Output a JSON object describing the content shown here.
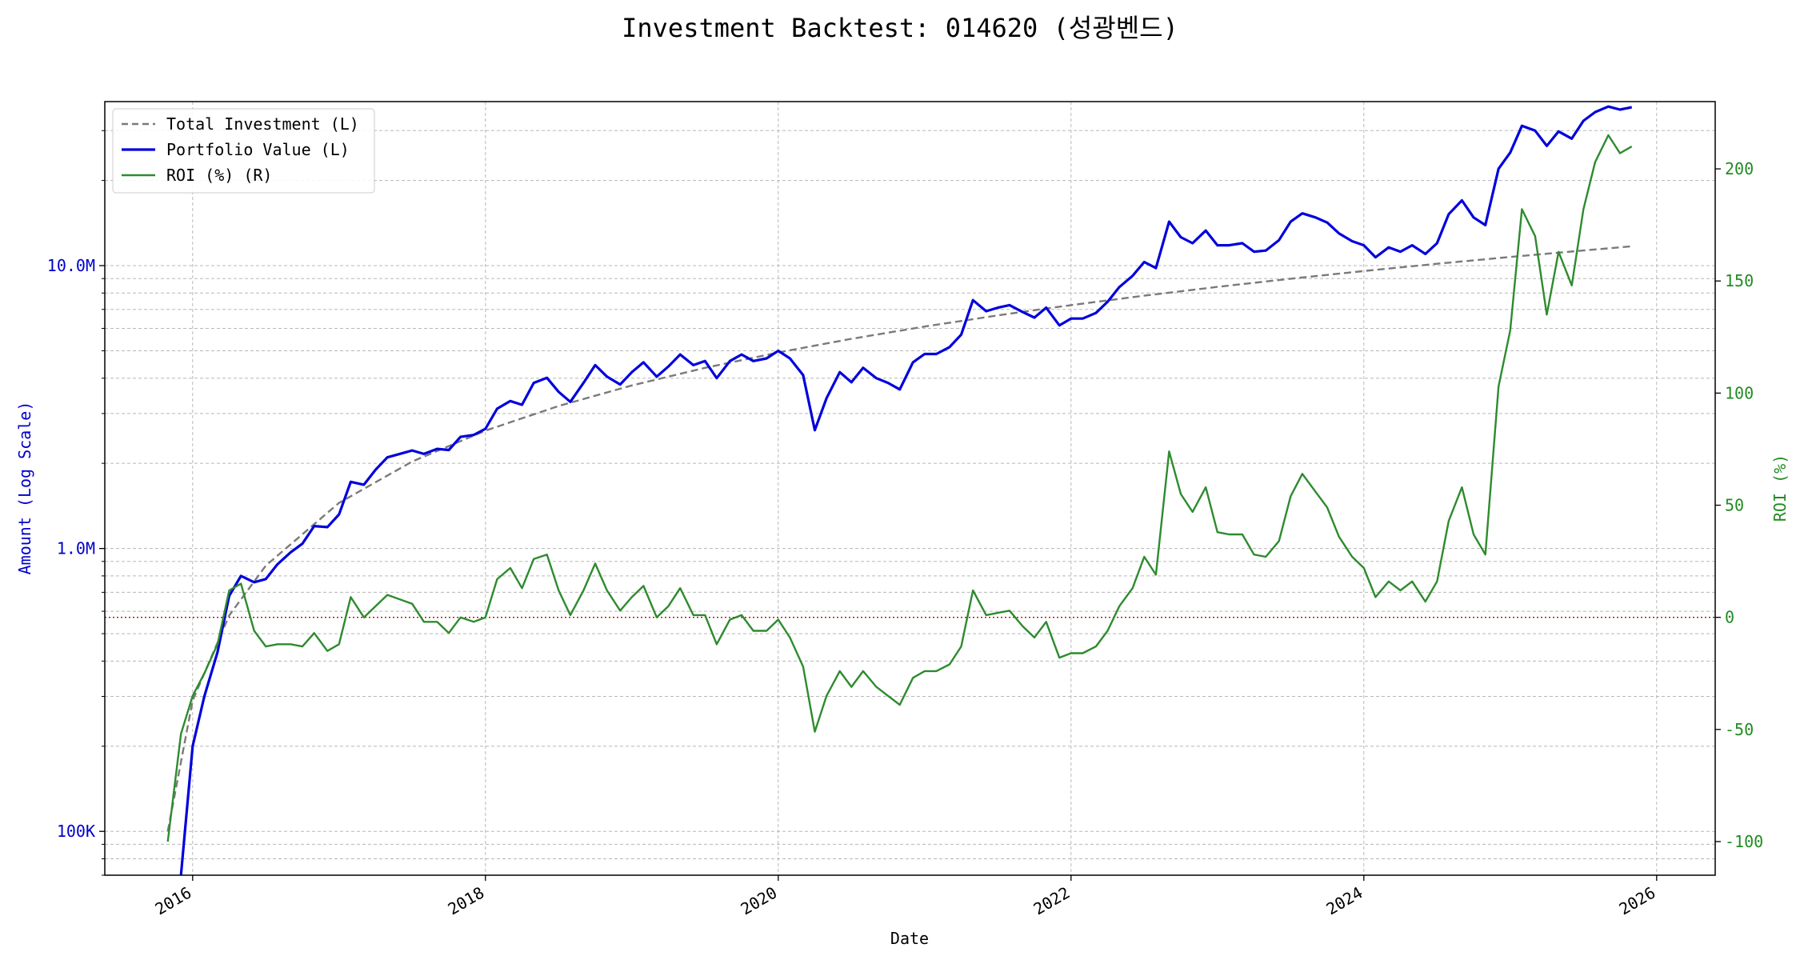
{
  "chart_data": {
    "type": "line",
    "title": "Investment Backtest: 014620 (성광벤드)",
    "xlabel": "Date",
    "ylabel_left": "Amount (Log Scale)",
    "ylabel_right": "ROI (%)",
    "y_left_scale": "log",
    "xlim": [
      2015.4,
      2026.4
    ],
    "ylim_left": [
      70000,
      38000000
    ],
    "ylim_right": [
      -115,
      230
    ],
    "x_ticks": [
      "2016",
      "2018",
      "2020",
      "2022",
      "2024",
      "2026"
    ],
    "y_left_ticks": [
      "100K",
      "1.0M",
      "10.0M"
    ],
    "y_right_ticks": [
      "-100",
      "-50",
      "0",
      "50",
      "100",
      "150",
      "200"
    ],
    "grid": true,
    "legend_position": "top-left",
    "reference_line": {
      "axis": "right",
      "value": 0,
      "color": "#cc0000",
      "style": "dotted"
    },
    "colors": {
      "left_axis": "#0000cc",
      "right_axis": "#228b22",
      "investment": "#7a7a7a",
      "portfolio": "#0000dd",
      "roi": "#2e8b2e"
    },
    "series": [
      {
        "name": "Total Investment (L)",
        "axis": "left",
        "style": "dashed",
        "color": "#7a7a7a",
        "x": [
          2015.83,
          2016.0,
          2016.25,
          2016.5,
          2017.0,
          2017.5,
          2018.0,
          2018.5,
          2019.0,
          2019.5,
          2020.0,
          2020.5,
          2021.0,
          2021.5,
          2022.0,
          2022.5,
          2023.0,
          2023.5,
          2024.0,
          2024.5,
          2025.0,
          2025.5,
          2025.83
        ],
        "y": [
          100000,
          290000,
          580000,
          870000,
          1450000,
          2030000,
          2610000,
          3190000,
          3770000,
          4350000,
          4930000,
          5510000,
          6090000,
          6670000,
          7250000,
          7830000,
          8410000,
          8990000,
          9570000,
          10150000,
          10730000,
          11310000,
          11700000
        ]
      },
      {
        "name": "Portfolio Value (L)",
        "axis": "left",
        "style": "solid",
        "color": "#0000dd",
        "x": [
          2015.92,
          2016.0,
          2016.08,
          2016.17,
          2016.25,
          2016.33,
          2016.42,
          2016.5,
          2016.58,
          2016.67,
          2016.75,
          2016.83,
          2016.92,
          2017.0,
          2017.08,
          2017.17,
          2017.25,
          2017.33,
          2017.5,
          2017.58,
          2017.67,
          2017.75,
          2017.83,
          2017.92,
          2018.0,
          2018.08,
          2018.17,
          2018.25,
          2018.33,
          2018.42,
          2018.5,
          2018.58,
          2018.67,
          2018.75,
          2018.83,
          2018.92,
          2019.0,
          2019.08,
          2019.17,
          2019.25,
          2019.33,
          2019.42,
          2019.5,
          2019.58,
          2019.67,
          2019.75,
          2019.83,
          2019.92,
          2020.0,
          2020.08,
          2020.17,
          2020.25,
          2020.33,
          2020.42,
          2020.5,
          2020.58,
          2020.67,
          2020.75,
          2020.83,
          2020.92,
          2021.0,
          2021.08,
          2021.17,
          2021.25,
          2021.33,
          2021.42,
          2021.5,
          2021.58,
          2021.67,
          2021.75,
          2021.83,
          2021.92,
          2022.0,
          2022.08,
          2022.17,
          2022.25,
          2022.33,
          2022.42,
          2022.5,
          2022.58,
          2022.67,
          2022.75,
          2022.83,
          2022.92,
          2023.0,
          2023.08,
          2023.17,
          2023.25,
          2023.33,
          2023.42,
          2023.5,
          2023.58,
          2023.67,
          2023.75,
          2023.83,
          2023.92,
          2024.0,
          2024.08,
          2024.17,
          2024.25,
          2024.33,
          2024.42,
          2024.5,
          2024.58,
          2024.67,
          2024.75,
          2024.83,
          2024.92,
          2025.0,
          2025.08,
          2025.17,
          2025.25,
          2025.33,
          2025.42,
          2025.5,
          2025.58,
          2025.67,
          2025.75,
          2025.83
        ],
        "y": [
          70000,
          200000,
          300000,
          430000,
          680000,
          800000,
          760000,
          780000,
          880000,
          970000,
          1040000,
          1200000,
          1190000,
          1320000,
          1720000,
          1680000,
          1900000,
          2100000,
          2220000,
          2160000,
          2250000,
          2230000,
          2480000,
          2520000,
          2650000,
          3120000,
          3320000,
          3220000,
          3850000,
          4010000,
          3580000,
          3300000,
          3850000,
          4450000,
          4050000,
          3800000,
          4200000,
          4550000,
          4050000,
          4400000,
          4850000,
          4450000,
          4600000,
          4000000,
          4600000,
          4850000,
          4600000,
          4700000,
          5000000,
          4700000,
          4100000,
          2620000,
          3400000,
          4200000,
          3870000,
          4350000,
          4000000,
          3850000,
          3650000,
          4550000,
          4870000,
          4870000,
          5150000,
          5700000,
          7550000,
          6900000,
          7100000,
          7250000,
          6850000,
          6550000,
          7100000,
          6150000,
          6500000,
          6500000,
          6800000,
          7450000,
          8400000,
          9200000,
          10300000,
          9800000,
          14300000,
          12600000,
          12000000,
          13300000,
          11800000,
          11800000,
          12000000,
          11200000,
          11300000,
          12300000,
          14300000,
          15300000,
          14800000,
          14200000,
          13000000,
          12200000,
          11800000,
          10700000,
          11600000,
          11200000,
          11800000,
          11000000,
          12000000,
          15200000,
          17000000,
          14800000,
          13900000,
          22000000,
          25100000,
          31200000,
          30000000,
          26500000,
          29800000,
          28100000,
          32500000,
          34900000,
          36500000,
          35600000,
          36300000
        ]
      },
      {
        "name": "ROI (%) (R)",
        "axis": "right",
        "style": "solid",
        "color": "#2e8b2e",
        "x": [
          2015.83,
          2015.92,
          2016.0,
          2016.08,
          2016.17,
          2016.25,
          2016.33,
          2016.42,
          2016.5,
          2016.58,
          2016.67,
          2016.75,
          2016.83,
          2016.92,
          2017.0,
          2017.08,
          2017.17,
          2017.25,
          2017.33,
          2017.5,
          2017.58,
          2017.67,
          2017.75,
          2017.83,
          2017.92,
          2018.0,
          2018.08,
          2018.17,
          2018.25,
          2018.33,
          2018.42,
          2018.5,
          2018.58,
          2018.67,
          2018.75,
          2018.83,
          2018.92,
          2019.0,
          2019.08,
          2019.17,
          2019.25,
          2019.33,
          2019.42,
          2019.5,
          2019.58,
          2019.67,
          2019.75,
          2019.83,
          2019.92,
          2020.0,
          2020.08,
          2020.17,
          2020.25,
          2020.33,
          2020.42,
          2020.5,
          2020.58,
          2020.67,
          2020.75,
          2020.83,
          2020.92,
          2021.0,
          2021.08,
          2021.17,
          2021.25,
          2021.33,
          2021.42,
          2021.5,
          2021.58,
          2021.67,
          2021.75,
          2021.83,
          2021.92,
          2022.0,
          2022.08,
          2022.17,
          2022.25,
          2022.33,
          2022.42,
          2022.5,
          2022.58,
          2022.67,
          2022.75,
          2022.83,
          2022.92,
          2023.0,
          2023.08,
          2023.17,
          2023.25,
          2023.33,
          2023.42,
          2023.5,
          2023.58,
          2023.67,
          2023.75,
          2023.83,
          2023.92,
          2024.0,
          2024.08,
          2024.17,
          2024.25,
          2024.33,
          2024.42,
          2024.5,
          2024.58,
          2024.67,
          2024.75,
          2024.83,
          2024.92,
          2025.0,
          2025.08,
          2025.17,
          2025.25,
          2025.33,
          2025.42,
          2025.5,
          2025.58,
          2025.67,
          2025.75,
          2025.83
        ],
        "y": [
          -100,
          -52,
          -35,
          -25,
          -12,
          12,
          15,
          -6,
          -13,
          -12,
          -12,
          -13,
          -7,
          -15,
          -12,
          9,
          0,
          5,
          10,
          6,
          -2,
          -2,
          -7,
          0,
          -2,
          0,
          17,
          22,
          13,
          26,
          28,
          12,
          1,
          12,
          24,
          12,
          3,
          9,
          14,
          0,
          5,
          13,
          1,
          1,
          -12,
          -1,
          1,
          -6,
          -6,
          -1,
          -9,
          -22,
          -51,
          -35,
          -24,
          -31,
          -24,
          -31,
          -35,
          -39,
          -27,
          -24,
          -24,
          -21,
          -13,
          12,
          1,
          2,
          3,
          -4,
          -9,
          -2,
          -18,
          -16,
          -16,
          -13,
          -6,
          5,
          13,
          27,
          19,
          74,
          55,
          47,
          58,
          38,
          37,
          37,
          28,
          27,
          34,
          54,
          64,
          56,
          49,
          36,
          27,
          22,
          9,
          16,
          12,
          16,
          7,
          16,
          43,
          58,
          37,
          28,
          103,
          128,
          182,
          170,
          135,
          163,
          148,
          182,
          203,
          215,
          207,
          210
        ]
      }
    ]
  }
}
